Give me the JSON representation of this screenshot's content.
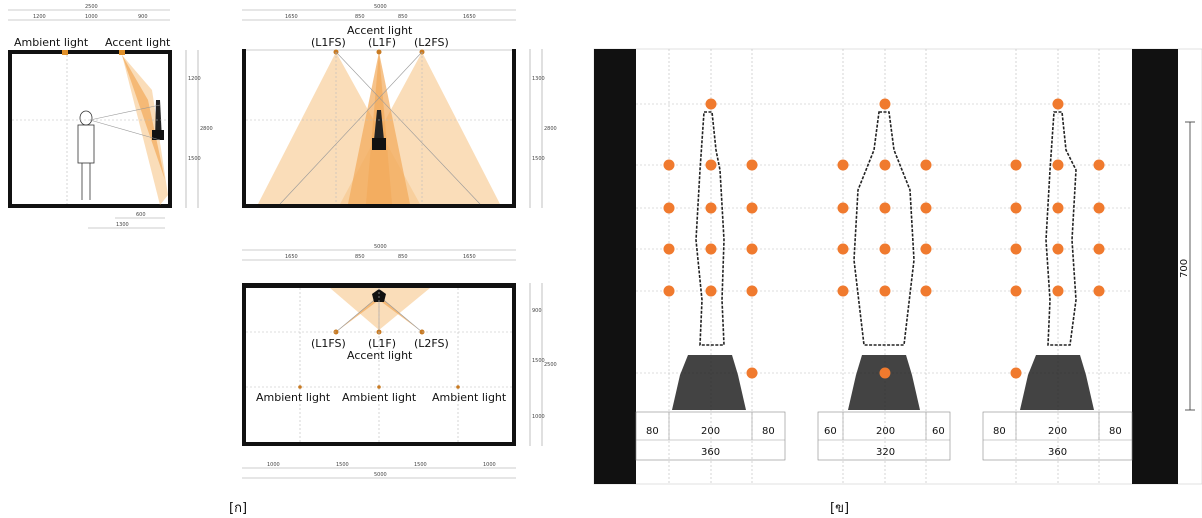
{
  "panel_a": {
    "caption": "[ก]",
    "section": {
      "labels": {
        "ambient": "Ambient light",
        "accent": "Accent light"
      },
      "dims": {
        "total": "2500",
        "d1": "1200",
        "d2": "1000",
        "d3": "900",
        "h1": "1200",
        "h2": "1500",
        "htot": "2800",
        "b1": "600",
        "b2": "1300"
      }
    },
    "elevation": {
      "title": "Accent light",
      "fixtures": [
        "(L1FS)",
        "(L1F)",
        "(L2FS)"
      ],
      "dims": {
        "total": "5000",
        "d1": "1650",
        "d2": "850",
        "d3": "850",
        "d4": "1650",
        "h1": "1300",
        "h2": "1500",
        "htot": "2800"
      }
    },
    "plan": {
      "fixtures": [
        "(L1FS)",
        "(L1F)",
        "(L2FS)"
      ],
      "accent_label": "Accent light",
      "ambient_labels": [
        "Ambient light",
        "Ambient light",
        "Ambient light"
      ],
      "dims_top": {
        "total": "5000",
        "d1": "1650",
        "d2": "850",
        "d3": "850",
        "d4": "1650"
      },
      "dims_bottom": {
        "d1": "1000",
        "d2": "1500",
        "d3": "1500",
        "d4": "1000",
        "total": "5000"
      },
      "dims_side": {
        "h1": "900",
        "h2": "1500",
        "htot": "2500",
        "h3": "1000"
      }
    }
  },
  "panel_b": {
    "caption": "[ข]",
    "height_dim": "700",
    "bases": [
      {
        "left": "80",
        "mid": "200",
        "right": "80",
        "total": "360"
      },
      {
        "left": "60",
        "mid": "200",
        "right": "60",
        "total": "320"
      },
      {
        "left": "80",
        "mid": "200",
        "right": "80",
        "total": "360"
      }
    ],
    "colors": {
      "dot": "#f07a2e",
      "wall": "#111111",
      "beam_light": "#f6c78a",
      "beam_dark": "#f2a95a"
    }
  }
}
